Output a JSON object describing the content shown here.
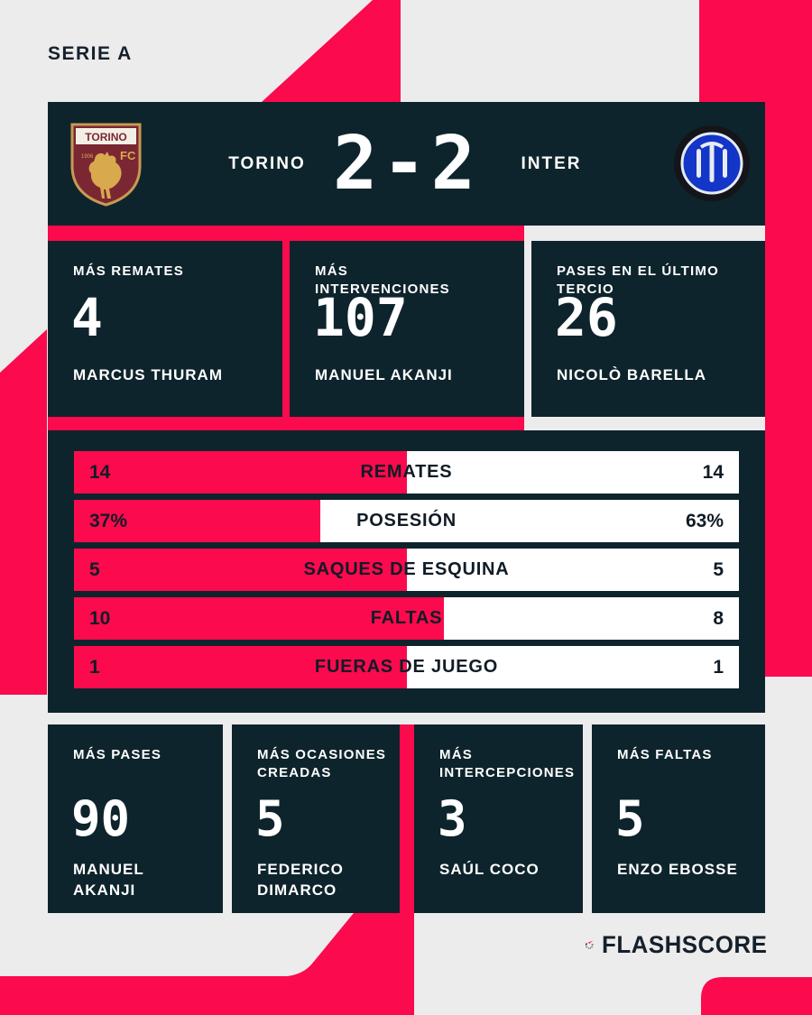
{
  "page": {
    "league": "SERIE A"
  },
  "colors": {
    "accent_red": "#fb0a4d",
    "panel_dark": "#0e242c",
    "background_gray": "#ececec",
    "bar_white": "#ffffff",
    "text_navy": "#15202b"
  },
  "header": {
    "home_team": "TORINO",
    "away_team": "INTER",
    "score": "2-2",
    "home_crest": {
      "icon": "torino-crest-icon",
      "title": "TORINO",
      "fc": "FC",
      "year": "1906"
    },
    "away_crest": {
      "icon": "inter-crest-icon"
    }
  },
  "top_stats": [
    {
      "label": "MÁS REMATES",
      "value": "4",
      "player": "MARCUS THURAM"
    },
    {
      "label": "MÁS INTERVENCIONES",
      "value": "107",
      "player": "MANUEL AKANJI"
    },
    {
      "label": "PASES EN EL ÚLTIMO TERCIO",
      "value": "26",
      "player": "NICOLÒ BARELLA"
    }
  ],
  "chart_data": {
    "type": "bar",
    "subtype": "head-to-head-match-stats",
    "categories": [
      "REMATES",
      "POSESIÓN",
      "SAQUES DE ESQUINA",
      "FALTAS",
      "FUERAS DE JUEGO"
    ],
    "series": [
      {
        "name": "TORINO",
        "color": "#fb0a4d",
        "values": [
          14,
          37,
          5,
          10,
          1
        ]
      },
      {
        "name": "INTER",
        "color": "#ffffff",
        "values": [
          14,
          63,
          5,
          8,
          1
        ]
      }
    ],
    "rows": [
      {
        "label": "REMATES",
        "home": "14",
        "away": "14",
        "home_pct": 50
      },
      {
        "label": "POSESIÓN",
        "home": "37%",
        "away": "63%",
        "home_pct": 37
      },
      {
        "label": "SAQUES DE ESQUINA",
        "home": "5",
        "away": "5",
        "home_pct": 50
      },
      {
        "label": "FALTAS",
        "home": "10",
        "away": "8",
        "home_pct": 55.6
      },
      {
        "label": "FUERAS DE JUEGO",
        "home": "1",
        "away": "1",
        "home_pct": 50
      }
    ],
    "legend_position": "none",
    "grid": false
  },
  "bottom_stats": [
    {
      "label": "MÁS PASES",
      "value": "90",
      "player": "MANUEL AKANJI"
    },
    {
      "label": "MÁS OCASIONES CREADAS",
      "value": "5",
      "player": "FEDERICO DIMARCO"
    },
    {
      "label": "MÁS INTERCEPCIONES",
      "value": "3",
      "player": "SAÚL COCO"
    },
    {
      "label": "MÁS FALTAS",
      "value": "5",
      "player": "ENZO EBOSSE"
    }
  ],
  "footer": {
    "brand": "FLASHSCORE",
    "icon": "flashscore-spinner-icon"
  }
}
